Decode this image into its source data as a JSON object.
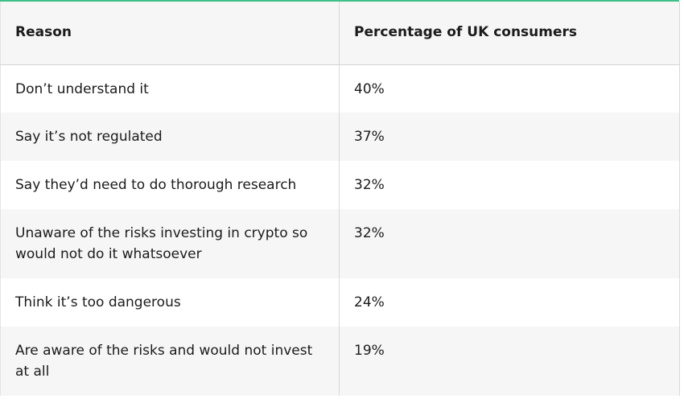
{
  "table": {
    "headers": [
      "Reason",
      "Percentage of UK consumers"
    ],
    "rows": [
      {
        "reason": "Don’t understand it",
        "percentage": "40%"
      },
      {
        "reason": "Say it’s not regulated",
        "percentage": "37%"
      },
      {
        "reason": "Say they’d need to do thorough research",
        "percentage": "32%"
      },
      {
        "reason": "Unaware of the risks investing in crypto so would not do it whatsoever",
        "percentage": "32%"
      },
      {
        "reason": "Think it’s too dangerous",
        "percentage": "24%"
      },
      {
        "reason": "Are aware of the risks and would not invest at all",
        "percentage": "19%"
      }
    ]
  },
  "colors": {
    "accent": "#3ec08a",
    "header_bg": "#f6f6f6",
    "stripe_bg": "#f6f6f6",
    "text": "#1b1b1b"
  }
}
